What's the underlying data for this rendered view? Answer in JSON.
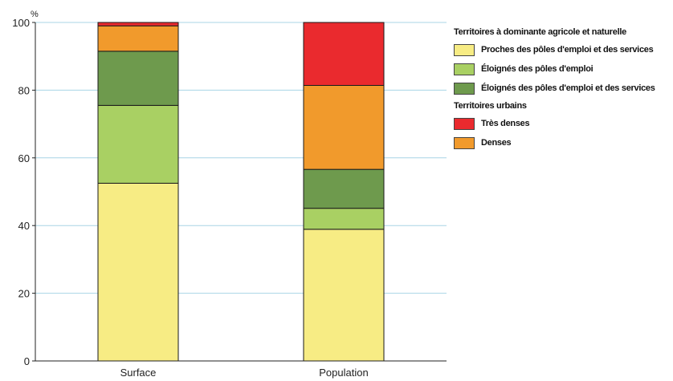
{
  "chart_data": {
    "type": "bar",
    "stacked": true,
    "unit_label": "%",
    "categories": [
      "Surface",
      "Population"
    ],
    "ylim": [
      0,
      100
    ],
    "yticks": [
      0,
      20,
      40,
      60,
      80,
      100
    ],
    "grid": true,
    "legend_position": "right",
    "legend_groups": [
      {
        "title": "Territoires à dominante agricole et naturelle",
        "items": [
          "Proches des pôles d'emploi et des services",
          "Éloignés des pôles d'emploi",
          "Éloignés des pôles d'emploi et des services"
        ]
      },
      {
        "title": "Territoires urbains",
        "items": [
          "Très denses",
          "Denses"
        ]
      }
    ],
    "series": [
      {
        "name": "Proches des pôles d'emploi et des services",
        "color": "#f7ec84",
        "values": [
          52.5,
          38.9
        ]
      },
      {
        "name": "Éloignés des pôles d'emploi",
        "color": "#a9d063",
        "values": [
          23.0,
          6.2
        ]
      },
      {
        "name": "Éloignés des pôles d'emploi et des services",
        "color": "#6e9a4d",
        "values": [
          16.0,
          11.5
        ]
      },
      {
        "name": "Denses",
        "color": "#f19a2c",
        "values": [
          7.5,
          24.8
        ]
      },
      {
        "name": "Très denses",
        "color": "#ea2a2e",
        "values": [
          1.0,
          18.6
        ]
      }
    ]
  }
}
